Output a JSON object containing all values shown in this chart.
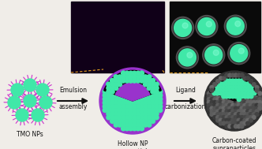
{
  "bg_color": "#f0ede8",
  "label_tmo": "TMO NPs",
  "label_hollow": "Hollow NP\nsupraparticles",
  "label_carbon": "Carbon-coated\nsupraparticles",
  "arrow1_text_top": "Emulsion",
  "arrow1_text_bot": "assembly",
  "arrow2_text_top": "Ligand",
  "arrow2_text_bot": "carbonization",
  "nanoparticle_core_color": "#40e8a8",
  "nanoparticle_spike_color": "#cc33cc",
  "hollow_sphere_color": "#9933cc",
  "hollow_dot_color": "#40e8a8",
  "hollow_inner_color": "#050505",
  "carbon_outer_color": "#303030",
  "carbon_dot_color": "#40e8a8",
  "inset_bg_hollow": "#100018",
  "inset_bg_carbon": "#0a0a0a",
  "arrow_color": "#111111",
  "text_color": "#111111",
  "zoom_line_color": "#e8a020",
  "figsize": [
    3.32,
    1.89
  ],
  "dpi": 100
}
